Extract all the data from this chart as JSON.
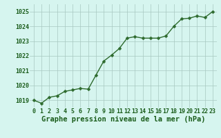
{
  "x": [
    0,
    1,
    2,
    3,
    4,
    5,
    6,
    7,
    8,
    9,
    10,
    11,
    12,
    13,
    14,
    15,
    16,
    17,
    18,
    19,
    20,
    21,
    22,
    23
  ],
  "y": [
    1019.0,
    1018.8,
    1019.2,
    1019.3,
    1019.6,
    1019.7,
    1019.8,
    1019.75,
    1020.7,
    1021.65,
    1022.05,
    1022.5,
    1023.2,
    1023.3,
    1023.2,
    1023.2,
    1023.2,
    1023.35,
    1024.0,
    1024.5,
    1024.55,
    1024.7,
    1024.6,
    1025.0
  ],
  "line_color": "#2d6a2d",
  "marker": "D",
  "marker_size": 2.5,
  "bg_color": "#d6f5ef",
  "grid_color": "#a8c8c0",
  "xlabel": "Graphe pression niveau de la mer (hPa)",
  "xlabel_fontsize": 7.5,
  "ylim": [
    1018.5,
    1025.5
  ],
  "yticks": [
    1019,
    1020,
    1021,
    1022,
    1023,
    1024,
    1025
  ],
  "xticks": [
    0,
    1,
    2,
    3,
    4,
    5,
    6,
    7,
    8,
    9,
    10,
    11,
    12,
    13,
    14,
    15,
    16,
    17,
    18,
    19,
    20,
    21,
    22,
    23
  ],
  "tick_fontsize": 6,
  "tick_color": "#1a5c1a",
  "label_color": "#1a5c1a",
  "line_width": 1.0
}
